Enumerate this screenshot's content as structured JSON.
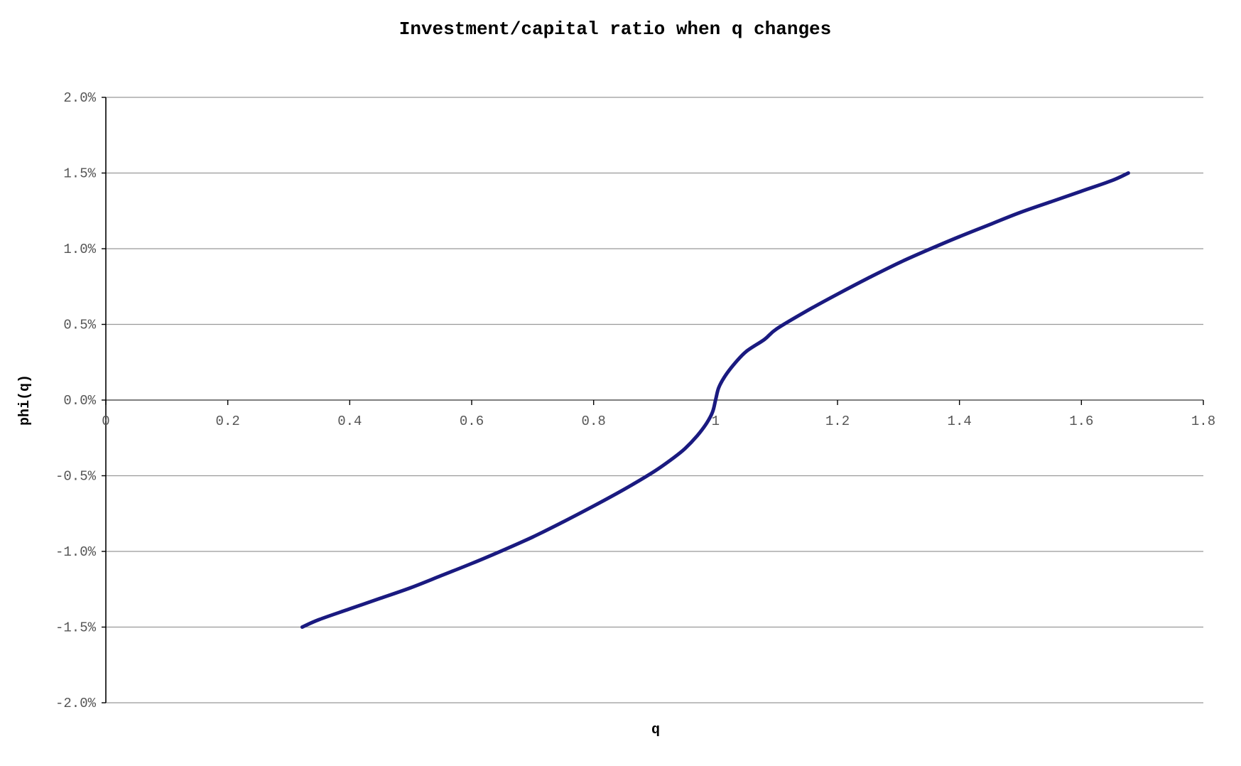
{
  "chart_data": {
    "type": "line",
    "title": "Investment/capital ratio when q changes",
    "xlabel": "q",
    "ylabel": "phi(q)",
    "xlim": [
      0,
      1.8
    ],
    "ylim": [
      -2.0,
      2.0
    ],
    "x_ticks": [
      "0",
      "0.2",
      "0.4",
      "0.6",
      "0.8",
      "1",
      "1.2",
      "1.4",
      "1.6",
      "1.8"
    ],
    "x_tick_values": [
      0,
      0.2,
      0.4,
      0.6,
      0.8,
      1.0,
      1.2,
      1.4,
      1.6,
      1.8
    ],
    "y_ticks": [
      "2.0%",
      "1.5%",
      "1.0%",
      "0.5%",
      "0.0%",
      "-0.5%",
      "-1.0%",
      "-1.5%",
      "-2.0%"
    ],
    "y_tick_values": [
      2.0,
      1.5,
      1.0,
      0.5,
      0.0,
      -0.5,
      -1.0,
      -1.5,
      -2.0
    ],
    "y_unit": "%",
    "grid": true,
    "legend": "none",
    "line_color": "#1a1a80",
    "grid_color": "#999999",
    "series": [
      {
        "x": [
          0.322,
          0.35,
          0.4,
          0.45,
          0.5,
          0.55,
          0.6,
          0.65,
          0.7,
          0.75,
          0.8,
          0.85,
          0.9,
          0.93,
          0.95,
          0.97,
          0.985,
          0.995,
          1.0,
          1.005,
          1.015,
          1.03,
          1.05,
          1.08,
          1.1,
          1.15,
          1.2,
          1.25,
          1.3,
          1.35,
          1.4,
          1.45,
          1.5,
          1.55,
          1.6,
          1.65,
          1.677
        ],
        "y": [
          -1.5,
          -1.45,
          -1.38,
          -1.31,
          -1.24,
          -1.16,
          -1.08,
          -0.995,
          -0.905,
          -0.805,
          -0.7,
          -0.59,
          -0.47,
          -0.385,
          -0.32,
          -0.235,
          -0.155,
          -0.08,
          0.0,
          0.08,
          0.155,
          0.235,
          0.32,
          0.4,
          0.47,
          0.59,
          0.7,
          0.805,
          0.905,
          0.995,
          1.08,
          1.16,
          1.24,
          1.31,
          1.38,
          1.45,
          1.5
        ]
      }
    ]
  }
}
